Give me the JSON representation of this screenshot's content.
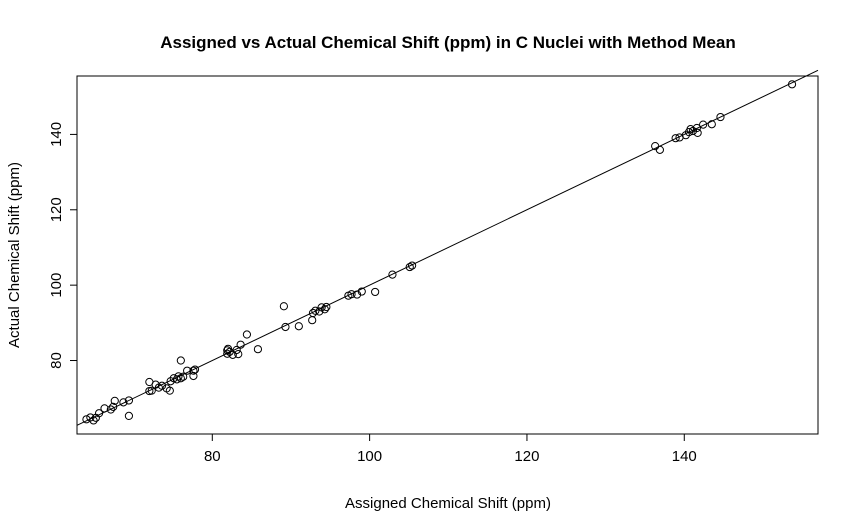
{
  "chart_data": {
    "type": "scatter",
    "title": "Assigned vs Actual Chemical Shift (ppm) in C Nuclei with Method Mean",
    "xlabel": "Assigned Chemical Shift (ppm)",
    "ylabel": "Actual Chemical Shift (ppm)",
    "xlim": [
      62.8,
      157.0
    ],
    "ylim": [
      60.5,
      155.5
    ],
    "xticks": [
      80,
      100,
      120,
      140
    ],
    "yticks": [
      80,
      100,
      120,
      140
    ],
    "grid": false,
    "reference_line": {
      "type": "identity",
      "from": [
        62.8,
        62.8
      ],
      "to": [
        157.0,
        157.0
      ]
    },
    "points": [
      [
        64.0,
        64.4
      ],
      [
        64.5,
        64.9
      ],
      [
        64.9,
        64.1
      ],
      [
        65.2,
        64.8
      ],
      [
        65.6,
        66.0
      ],
      [
        66.3,
        67.3
      ],
      [
        67.1,
        67.0
      ],
      [
        67.4,
        67.7
      ],
      [
        67.6,
        69.3
      ],
      [
        68.7,
        68.9
      ],
      [
        69.4,
        69.4
      ],
      [
        69.4,
        65.3
      ],
      [
        72.0,
        74.3
      ],
      [
        72.0,
        71.9
      ],
      [
        72.3,
        72.0
      ],
      [
        72.8,
        73.6
      ],
      [
        73.2,
        72.8
      ],
      [
        73.6,
        73.3
      ],
      [
        74.2,
        72.6
      ],
      [
        74.6,
        72.0
      ],
      [
        74.7,
        74.5
      ],
      [
        75.1,
        75.3
      ],
      [
        75.5,
        75.0
      ],
      [
        75.7,
        75.8
      ],
      [
        76.0,
        75.3
      ],
      [
        76.0,
        80.0
      ],
      [
        76.3,
        75.7
      ],
      [
        76.8,
        77.3
      ],
      [
        77.6,
        77.3
      ],
      [
        77.6,
        75.9
      ],
      [
        77.8,
        77.6
      ],
      [
        81.9,
        81.8
      ],
      [
        81.9,
        82.7
      ],
      [
        82.0,
        83.1
      ],
      [
        82.2,
        82.3
      ],
      [
        82.6,
        81.5
      ],
      [
        83.1,
        82.8
      ],
      [
        83.3,
        81.7
      ],
      [
        83.6,
        84.2
      ],
      [
        84.4,
        86.9
      ],
      [
        85.8,
        83.0
      ],
      [
        89.1,
        94.4
      ],
      [
        89.3,
        88.9
      ],
      [
        91.0,
        89.1
      ],
      [
        92.7,
        90.7
      ],
      [
        92.8,
        92.6
      ],
      [
        93.1,
        93.2
      ],
      [
        93.6,
        93.0
      ],
      [
        93.9,
        94.1
      ],
      [
        94.3,
        93.6
      ],
      [
        94.5,
        94.2
      ],
      [
        97.3,
        97.2
      ],
      [
        97.7,
        97.6
      ],
      [
        98.4,
        97.5
      ],
      [
        99.0,
        98.3
      ],
      [
        100.7,
        98.2
      ],
      [
        102.9,
        102.8
      ],
      [
        105.1,
        104.8
      ],
      [
        105.4,
        105.2
      ],
      [
        136.3,
        136.9
      ],
      [
        136.9,
        135.9
      ],
      [
        138.9,
        139.0
      ],
      [
        139.4,
        139.2
      ],
      [
        140.2,
        139.8
      ],
      [
        140.6,
        140.6
      ],
      [
        140.8,
        141.4
      ],
      [
        141.1,
        140.9
      ],
      [
        141.6,
        141.7
      ],
      [
        141.7,
        140.4
      ],
      [
        142.4,
        142.6
      ],
      [
        143.5,
        142.7
      ],
      [
        144.6,
        144.6
      ],
      [
        153.7,
        153.3
      ]
    ]
  }
}
